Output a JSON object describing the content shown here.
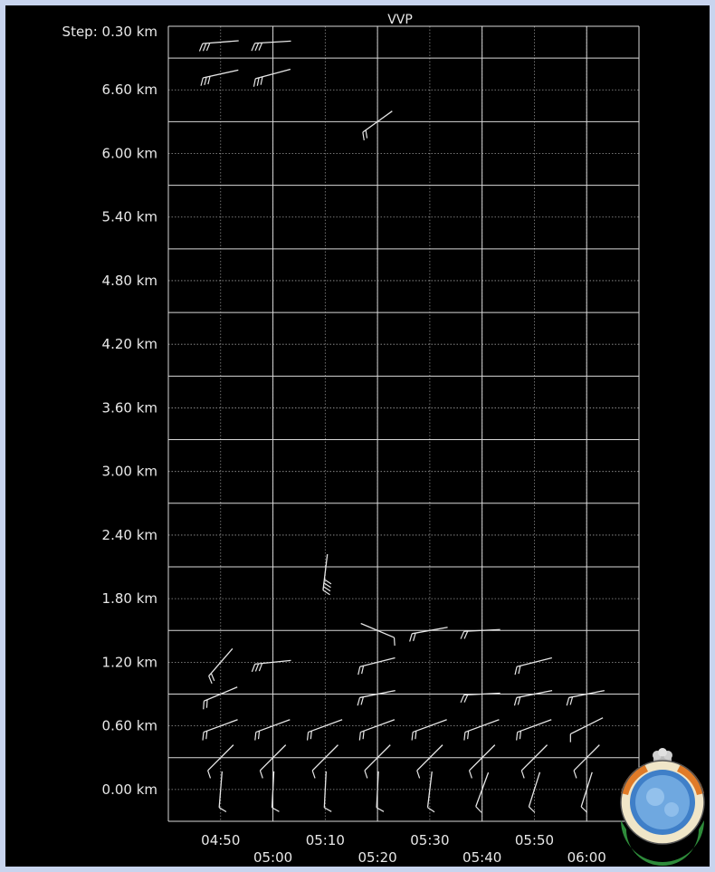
{
  "chart_data": {
    "type": "wind-barb",
    "title": "VVP",
    "step_label": "Step: 0.30 km",
    "y_unit": "km",
    "y_ticks": [
      "0.00 km",
      "0.60 km",
      "1.20 km",
      "1.80 km",
      "2.40 km",
      "3.00 km",
      "3.60 km",
      "4.20 km",
      "4.80 km",
      "5.40 km",
      "6.00 km",
      "6.60 km"
    ],
    "x_ticks_upper": [
      "04:50",
      "05:10",
      "05:30",
      "05:50"
    ],
    "x_ticks_lower": [
      "05:00",
      "05:20",
      "05:40",
      "06:00"
    ],
    "ylim": [
      -0.3,
      7.2
    ],
    "x_range": [
      "04:40",
      "06:10"
    ],
    "grid": true,
    "barbs": [
      {
        "time": "04:50",
        "height": 7.05,
        "u": 1.0,
        "v": 0.08,
        "barbs": 3
      },
      {
        "time": "05:00",
        "height": 7.05,
        "u": 1.0,
        "v": 0.06,
        "barbs": 3
      },
      {
        "time": "04:50",
        "height": 6.75,
        "u": 1.0,
        "v": 0.22,
        "barbs": 3
      },
      {
        "time": "05:00",
        "height": 6.75,
        "u": 1.0,
        "v": 0.27,
        "barbs": 3
      },
      {
        "time": "05:20",
        "height": 6.3,
        "u": 0.78,
        "v": 0.56,
        "barbs": 2
      },
      {
        "time": "05:10",
        "height": 2.05,
        "u": 0.12,
        "v": 1.0,
        "barbs": 4
      },
      {
        "time": "05:20",
        "height": 1.5,
        "u": -0.95,
        "v": 0.4,
        "barbs": 1
      },
      {
        "time": "05:30",
        "height": 1.5,
        "u": 1.0,
        "v": 0.18,
        "barbs": 2
      },
      {
        "time": "05:40",
        "height": 1.5,
        "u": 1.0,
        "v": 0.05,
        "barbs": 2
      },
      {
        "time": "04:50",
        "height": 1.2,
        "u": 0.65,
        "v": 0.75,
        "barbs": 2
      },
      {
        "time": "05:00",
        "height": 1.2,
        "u": 1.0,
        "v": 0.1,
        "barbs": 3
      },
      {
        "time": "05:20",
        "height": 1.2,
        "u": 1.0,
        "v": 0.25,
        "barbs": 2
      },
      {
        "time": "05:50",
        "height": 1.2,
        "u": 1.0,
        "v": 0.25,
        "barbs": 2
      },
      {
        "time": "04:50",
        "height": 0.9,
        "u": 0.95,
        "v": 0.4,
        "barbs": 2
      },
      {
        "time": "05:20",
        "height": 0.9,
        "u": 1.0,
        "v": 0.2,
        "barbs": 2
      },
      {
        "time": "05:40",
        "height": 0.9,
        "u": 1.0,
        "v": 0.05,
        "barbs": 2
      },
      {
        "time": "05:50",
        "height": 0.9,
        "u": 1.0,
        "v": 0.2,
        "barbs": 2
      },
      {
        "time": "06:00",
        "height": 0.9,
        "u": 1.0,
        "v": 0.2,
        "barbs": 2
      },
      {
        "time": "04:50",
        "height": 0.6,
        "u": 0.95,
        "v": 0.35,
        "barbs": 2
      },
      {
        "time": "05:00",
        "height": 0.6,
        "u": 0.95,
        "v": 0.35,
        "barbs": 2
      },
      {
        "time": "05:10",
        "height": 0.6,
        "u": 0.95,
        "v": 0.35,
        "barbs": 2
      },
      {
        "time": "05:20",
        "height": 0.6,
        "u": 0.95,
        "v": 0.35,
        "barbs": 2
      },
      {
        "time": "05:30",
        "height": 0.6,
        "u": 0.95,
        "v": 0.35,
        "barbs": 2
      },
      {
        "time": "05:40",
        "height": 0.6,
        "u": 0.95,
        "v": 0.35,
        "barbs": 2
      },
      {
        "time": "05:50",
        "height": 0.6,
        "u": 0.95,
        "v": 0.35,
        "barbs": 2
      },
      {
        "time": "06:00",
        "height": 0.6,
        "u": 0.9,
        "v": 0.45,
        "barbs": 1
      },
      {
        "time": "04:50",
        "height": 0.3,
        "u": 0.7,
        "v": 0.7,
        "barbs": 1
      },
      {
        "time": "05:00",
        "height": 0.3,
        "u": 0.7,
        "v": 0.7,
        "barbs": 1
      },
      {
        "time": "05:10",
        "height": 0.3,
        "u": 0.7,
        "v": 0.7,
        "barbs": 1
      },
      {
        "time": "05:20",
        "height": 0.3,
        "u": 0.7,
        "v": 0.7,
        "barbs": 1
      },
      {
        "time": "05:30",
        "height": 0.3,
        "u": 0.7,
        "v": 0.7,
        "barbs": 1
      },
      {
        "time": "05:40",
        "height": 0.3,
        "u": 0.7,
        "v": 0.7,
        "barbs": 1
      },
      {
        "time": "05:50",
        "height": 0.3,
        "u": 0.7,
        "v": 0.7,
        "barbs": 1
      },
      {
        "time": "06:00",
        "height": 0.3,
        "u": 0.7,
        "v": 0.7,
        "barbs": 1
      },
      {
        "time": "04:50",
        "height": 0.0,
        "u": 0.08,
        "v": 1.0,
        "barbs": 1
      },
      {
        "time": "05:00",
        "height": 0.0,
        "u": 0.05,
        "v": 1.0,
        "barbs": 1
      },
      {
        "time": "05:10",
        "height": 0.0,
        "u": 0.05,
        "v": 1.0,
        "barbs": 1
      },
      {
        "time": "05:20",
        "height": 0.0,
        "u": 0.05,
        "v": 1.0,
        "barbs": 1
      },
      {
        "time": "05:30",
        "height": 0.0,
        "u": 0.12,
        "v": 1.0,
        "barbs": 1
      },
      {
        "time": "05:40",
        "height": 0.0,
        "u": 0.35,
        "v": 0.95,
        "barbs": 1
      },
      {
        "time": "05:50",
        "height": 0.0,
        "u": 0.3,
        "v": 0.95,
        "barbs": 1
      },
      {
        "time": "06:00",
        "height": 0.0,
        "u": 0.3,
        "v": 0.95,
        "barbs": 1
      }
    ]
  },
  "logo": {
    "name": "imd-emblem-logo"
  }
}
